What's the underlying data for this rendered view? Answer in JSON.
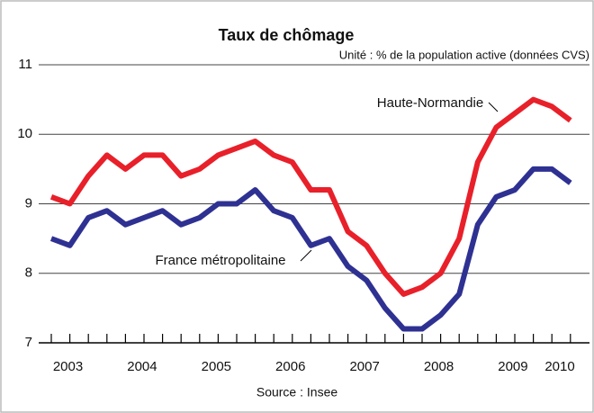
{
  "chart_data": {
    "type": "line",
    "title": "Taux de chômage",
    "subtitle": "Unité : % de la population active (données CVS)",
    "source": "Source : Insee",
    "x_axis_labels": [
      "2003",
      "2004",
      "2005",
      "2006",
      "2007",
      "2008",
      "2009",
      "2010"
    ],
    "series": [
      {
        "name": "Haute-Normandie",
        "color": "#e8202a",
        "values": [
          9.1,
          9.0,
          9.4,
          9.7,
          9.5,
          9.7,
          9.7,
          9.4,
          9.5,
          9.7,
          9.8,
          9.9,
          9.7,
          9.6,
          9.2,
          9.2,
          8.6,
          8.4,
          8.0,
          7.7,
          7.8,
          8.0,
          8.5,
          9.6,
          10.1,
          10.3,
          10.5,
          10.4,
          10.2
        ]
      },
      {
        "name": "France métropolitaine",
        "color": "#2e3192",
        "values": [
          8.5,
          8.4,
          8.8,
          8.9,
          8.7,
          8.8,
          8.9,
          8.7,
          8.8,
          9.0,
          9.0,
          9.2,
          8.9,
          8.8,
          8.4,
          8.5,
          8.1,
          7.9,
          7.5,
          7.2,
          7.2,
          7.4,
          7.7,
          8.7,
          9.1,
          9.2,
          9.5,
          9.5,
          9.3
        ]
      }
    ],
    "ylim": [
      7,
      11
    ],
    "yticks": [
      7,
      8,
      9,
      10,
      11
    ],
    "grid": true
  }
}
